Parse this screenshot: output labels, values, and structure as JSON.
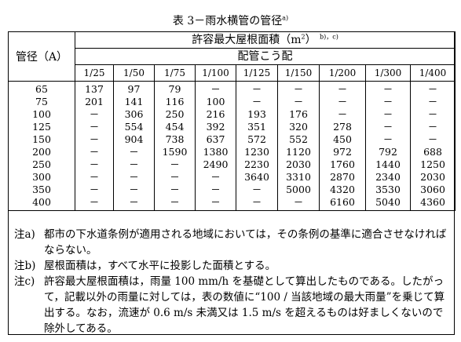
{
  "caption": {
    "text": "表 3－雨水横管の管径",
    "mark": "a)"
  },
  "table": {
    "diameter_header": "管径（A）",
    "area_header": "許容最大屋根面積（m",
    "area_header_sup": "2",
    "area_header_end": "）",
    "area_header_mark": "b)，c)",
    "slope_header": "配管こう配",
    "slopes": [
      "1/25",
      "1/50",
      "1/75",
      "1/100",
      "1/125",
      "1/150",
      "1/200",
      "1/300",
      "1/400"
    ],
    "rows": [
      {
        "dia": "65",
        "vals": [
          "137",
          "97",
          "79",
          "－",
          "－",
          "－",
          "－",
          "－",
          "－"
        ]
      },
      {
        "dia": "75",
        "vals": [
          "201",
          "141",
          "116",
          "100",
          "－",
          "－",
          "－",
          "－",
          "－"
        ]
      },
      {
        "dia": "100",
        "vals": [
          "－",
          "306",
          "250",
          "216",
          "193",
          "176",
          "－",
          "－",
          "－"
        ]
      },
      {
        "dia": "125",
        "vals": [
          "－",
          "554",
          "454",
          "392",
          "351",
          "320",
          "278",
          "－",
          "－"
        ]
      },
      {
        "dia": "150",
        "vals": [
          "－",
          "904",
          "738",
          "637",
          "572",
          "552",
          "450",
          "－",
          "－"
        ]
      },
      {
        "dia": "200",
        "vals": [
          "－",
          "－",
          "1590",
          "1380",
          "1230",
          "1120",
          "972",
          "792",
          "688"
        ]
      },
      {
        "dia": "250",
        "vals": [
          "－",
          "－",
          "－",
          "2490",
          "2230",
          "2030",
          "1760",
          "1440",
          "1250"
        ]
      },
      {
        "dia": "300",
        "vals": [
          "－",
          "－",
          "－",
          "－",
          "3640",
          "3310",
          "2870",
          "2340",
          "2030"
        ]
      },
      {
        "dia": "350",
        "vals": [
          "－",
          "－",
          "－",
          "－",
          "－",
          "5000",
          "4320",
          "3530",
          "3060"
        ]
      },
      {
        "dia": "400",
        "vals": [
          "－",
          "－",
          "－",
          "－",
          "－",
          "－",
          "6160",
          "5040",
          "4360"
        ]
      }
    ]
  },
  "notes": [
    {
      "label": "注a)",
      "text": "都市の下水道条例が適用される地域においては，その条例の基準に適合させなければならない。"
    },
    {
      "label": "注b)",
      "text": "屋根面積は，すべて水平に投影した面積とする。"
    },
    {
      "label": "注c)",
      "text": "許容最大屋根面積は，雨量 100 mm/h を基礎として算出したものである。したがって，記載以外の雨量に対しては，表の数値に“100 / 当該地域の最大雨量”を乗じて算出する。なお，流速が 0.6 m/s 未満又は 1.5 m/s を超えるものは好ましくないので除外してある。"
    }
  ]
}
